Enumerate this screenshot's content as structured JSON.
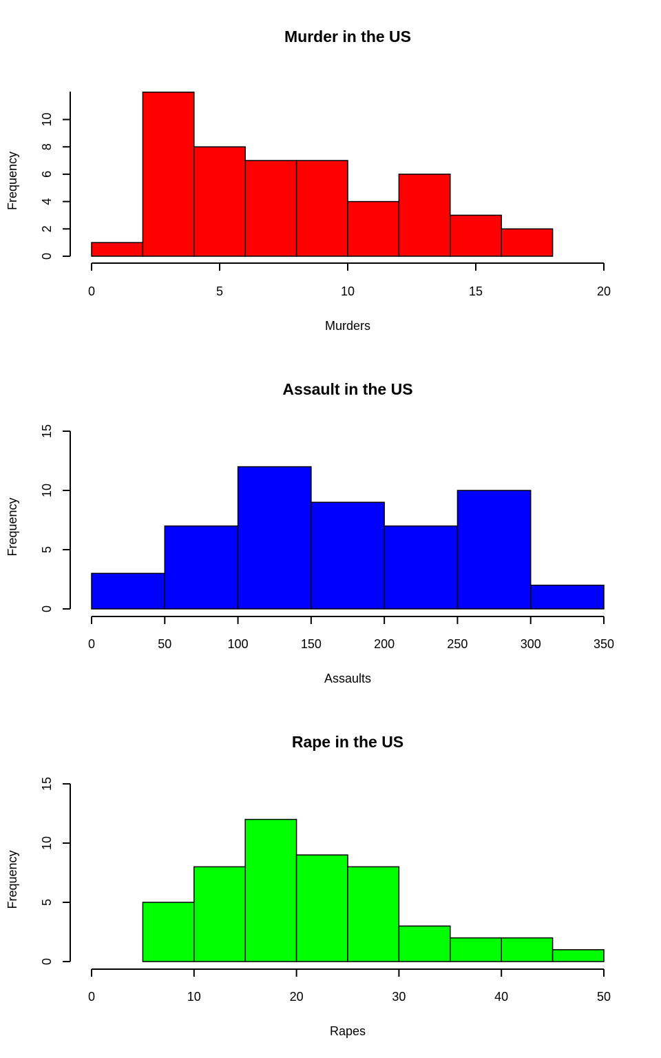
{
  "chart_data": [
    {
      "type": "bar",
      "title": "Murder in the US",
      "xlabel": "Murders",
      "ylabel": "Frequency",
      "color": "#ff0000",
      "bins": [
        [
          0,
          2
        ],
        [
          2,
          4
        ],
        [
          4,
          6
        ],
        [
          6,
          8
        ],
        [
          8,
          10
        ],
        [
          10,
          12
        ],
        [
          12,
          14
        ],
        [
          14,
          16
        ],
        [
          16,
          18
        ]
      ],
      "values": [
        1,
        12,
        8,
        7,
        7,
        4,
        6,
        3,
        2
      ],
      "xlim": [
        0,
        20
      ],
      "ylim": [
        0,
        12
      ],
      "xticks": [
        0,
        5,
        10,
        15,
        20
      ],
      "yticks": [
        0,
        2,
        4,
        6,
        8,
        10
      ],
      "grid": false,
      "legend": "none"
    },
    {
      "type": "bar",
      "title": "Assault in the US",
      "xlabel": "Assaults",
      "ylabel": "Frequency",
      "color": "#0000ff",
      "bins": [
        [
          0,
          50
        ],
        [
          50,
          100
        ],
        [
          100,
          150
        ],
        [
          150,
          200
        ],
        [
          200,
          250
        ],
        [
          250,
          300
        ],
        [
          300,
          350
        ]
      ],
      "values": [
        3,
        7,
        12,
        9,
        7,
        10,
        2
      ],
      "xlim": [
        0,
        350
      ],
      "ylim": [
        0,
        15
      ],
      "xticks": [
        0,
        50,
        100,
        150,
        200,
        250,
        300,
        350
      ],
      "yticks": [
        0,
        5,
        10,
        15
      ],
      "grid": false,
      "legend": "none"
    },
    {
      "type": "bar",
      "title": "Rape in the US",
      "xlabel": "Rapes",
      "ylabel": "Frequency",
      "color": "#00ff00",
      "bins": [
        [
          5,
          10
        ],
        [
          10,
          15
        ],
        [
          15,
          20
        ],
        [
          20,
          25
        ],
        [
          25,
          30
        ],
        [
          30,
          35
        ],
        [
          35,
          40
        ],
        [
          40,
          45
        ],
        [
          45,
          50
        ]
      ],
      "values": [
        5,
        8,
        12,
        9,
        8,
        3,
        2,
        2,
        1
      ],
      "xlim": [
        0,
        50
      ],
      "ylim": [
        0,
        15
      ],
      "xticks": [
        0,
        10,
        20,
        30,
        40,
        50
      ],
      "yticks": [
        0,
        5,
        10,
        15
      ],
      "grid": false,
      "legend": "none"
    }
  ]
}
